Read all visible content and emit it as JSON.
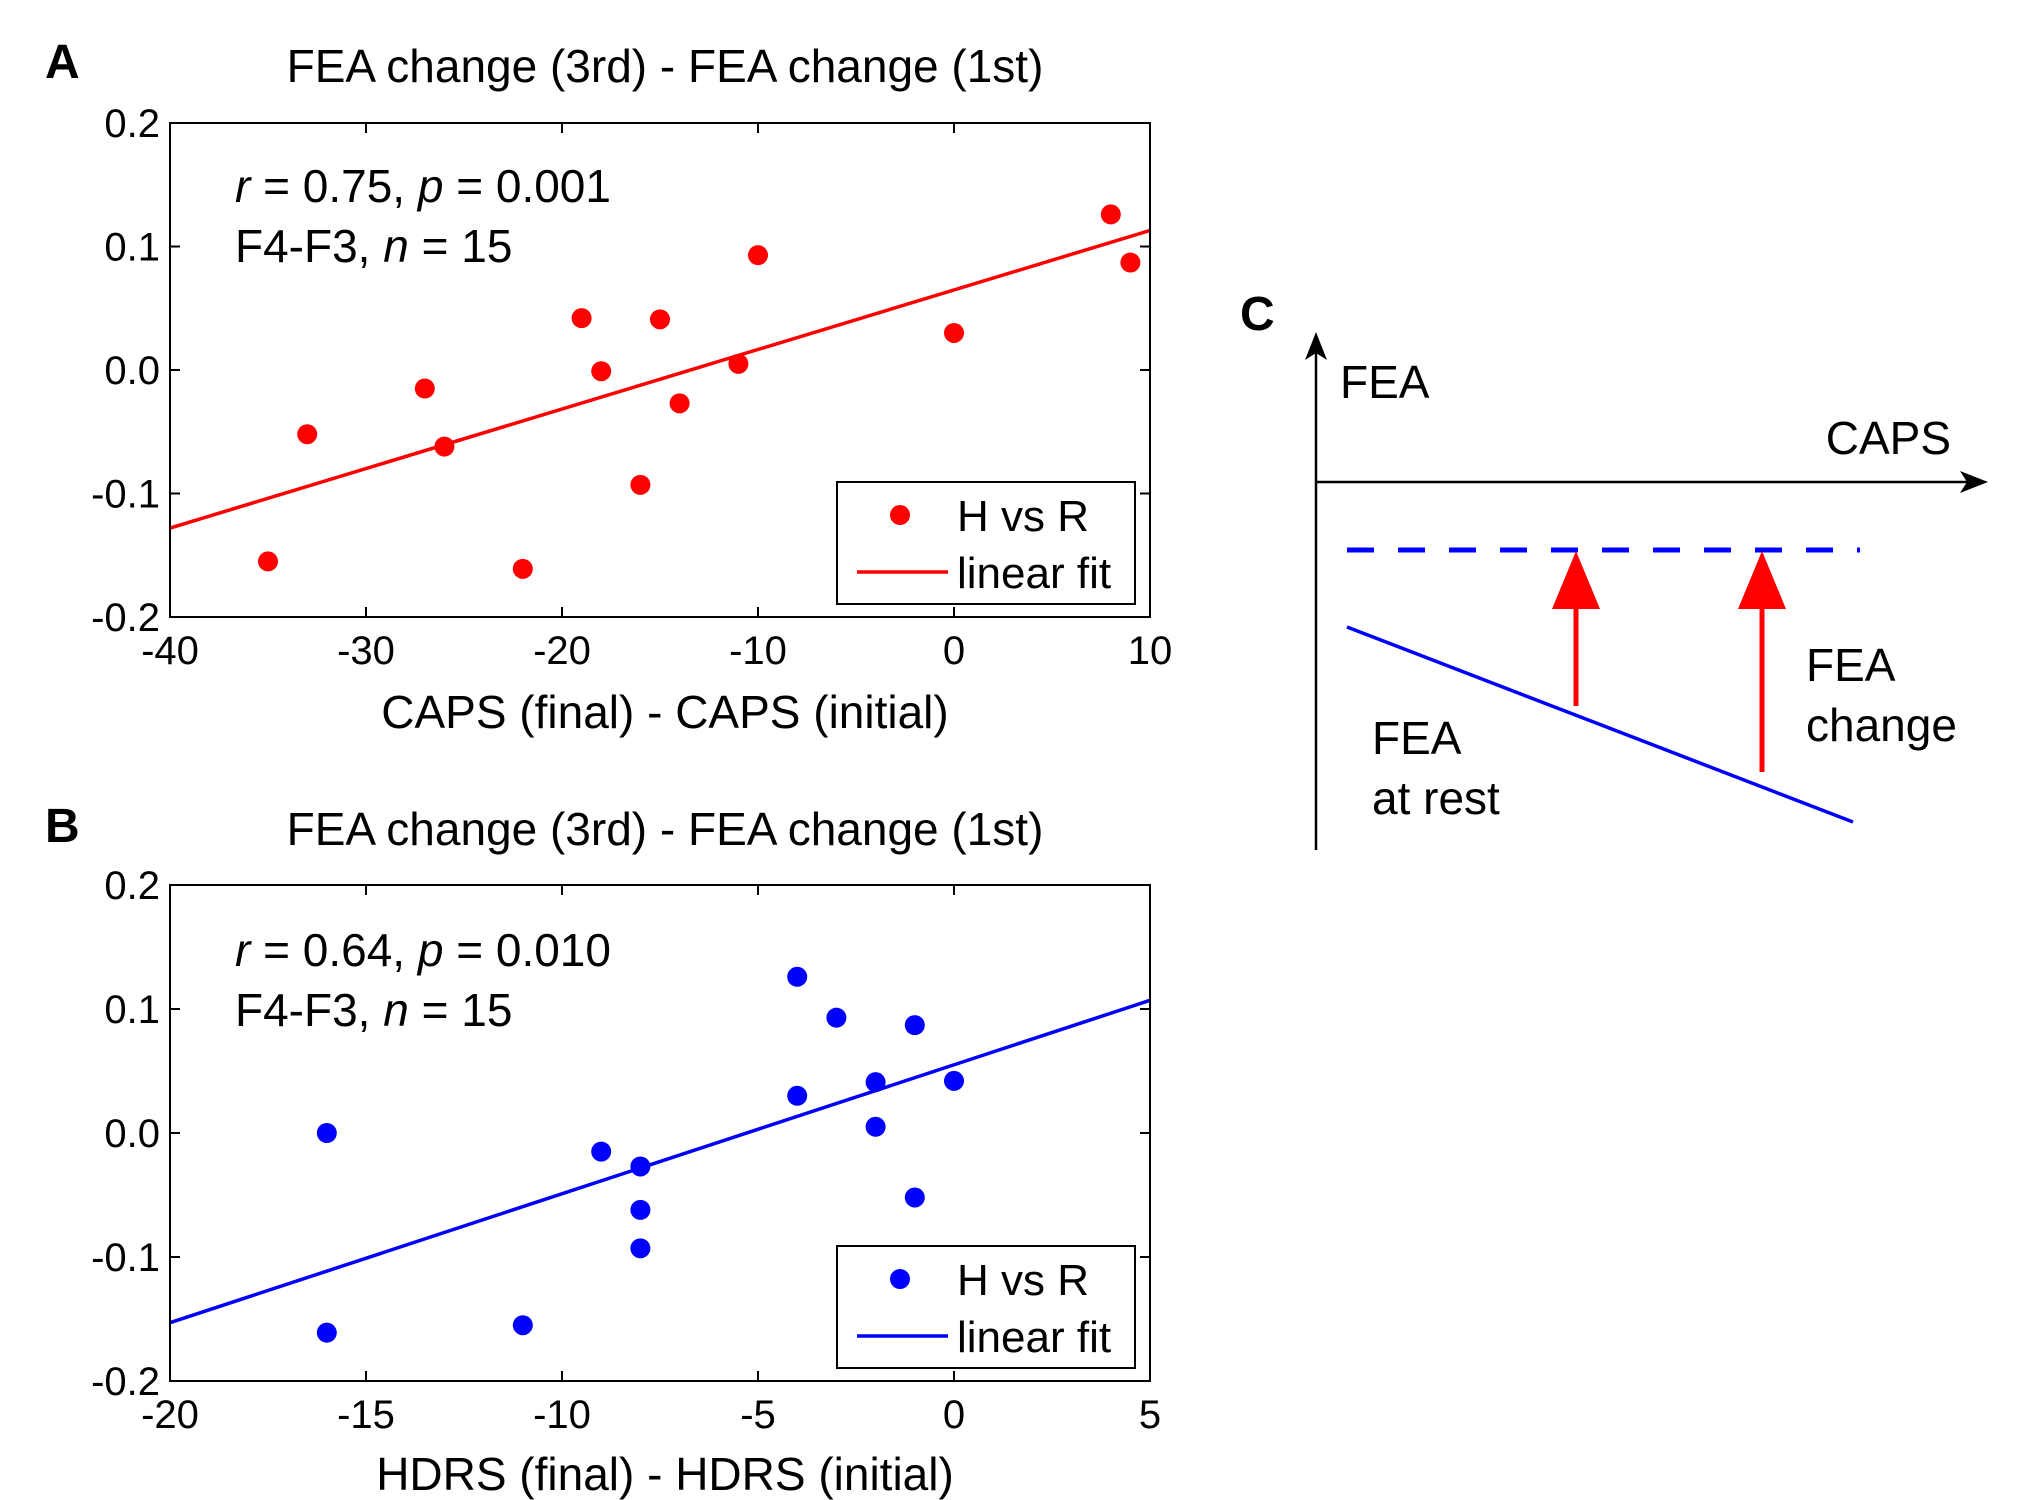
{
  "chart_data": [
    {
      "panel": "A",
      "type": "scatter",
      "title": "FEA change (3rd) - FEA change (1st)",
      "xlabel": "CAPS (final) - CAPS (initial)",
      "ylabel": "",
      "xlim": [
        -40,
        10
      ],
      "ylim": [
        -0.2,
        0.2
      ],
      "xticks": [
        -40,
        -30,
        -20,
        -10,
        0,
        10
      ],
      "xtick_labels": [
        "-40",
        "-30",
        "-20",
        "-10",
        "0",
        "10"
      ],
      "yticks": [
        -0.2,
        -0.1,
        0.0,
        0.1,
        0.2
      ],
      "ytick_labels": [
        "-0.2",
        "-0.1",
        "0.0",
        "0.1",
        "0.2"
      ],
      "color": "#ff0000",
      "stats": {
        "r_label": "r",
        "r_value": " = 0.75, ",
        "p_label": "p",
        "p_value": " = 0.001",
        "channel": "F4-F3, ",
        "n_label": "n",
        "n_value": " = 15"
      },
      "legend": {
        "points": "H vs R",
        "line": "linear fit",
        "position": "bottom-right"
      },
      "series": [
        {
          "name": "H vs R",
          "kind": "points",
          "x": [
            -35,
            -33,
            -27,
            -26,
            -22,
            -19,
            -18,
            -16,
            -15,
            -14,
            -11,
            -10,
            0,
            8,
            9
          ],
          "y": [
            -0.155,
            -0.052,
            -0.015,
            -0.062,
            -0.161,
            0.042,
            -0.001,
            -0.093,
            0.041,
            -0.027,
            0.005,
            0.093,
            0.03,
            0.126,
            0.087
          ]
        },
        {
          "name": "linear fit",
          "kind": "line",
          "x": [
            -40,
            10
          ],
          "y": [
            -0.128,
            0.113
          ]
        }
      ]
    },
    {
      "panel": "B",
      "type": "scatter",
      "title": "FEA change (3rd) - FEA change (1st)",
      "xlabel": "HDRS (final) - HDRS (initial)",
      "ylabel": "",
      "xlim": [
        -20,
        5
      ],
      "ylim": [
        -0.2,
        0.2
      ],
      "xticks": [
        -20,
        -15,
        -10,
        -5,
        0,
        5
      ],
      "xtick_labels": [
        "-20",
        "-15",
        "-10",
        "-5",
        "0",
        "5"
      ],
      "yticks": [
        -0.2,
        -0.1,
        0.0,
        0.1,
        0.2
      ],
      "ytick_labels": [
        "-0.2",
        "-0.1",
        "0.0",
        "0.1",
        "0.2"
      ],
      "color": "#0000ff",
      "stats": {
        "r_label": "r",
        "r_value": " = 0.64, ",
        "p_label": "p",
        "p_value": " = 0.010",
        "channel": "F4-F3, ",
        "n_label": "n",
        "n_value": " = 15"
      },
      "legend": {
        "points": "H vs R",
        "line": "linear fit",
        "position": "bottom-right"
      },
      "series": [
        {
          "name": "H vs R",
          "kind": "points",
          "x": [
            -16,
            -16,
            -11,
            -9,
            -8,
            -8,
            -8,
            -4,
            -4,
            -3,
            -2,
            -2,
            -1,
            -1,
            0
          ],
          "y": [
            0.0,
            -0.161,
            -0.155,
            -0.015,
            -0.027,
            -0.062,
            -0.093,
            0.126,
            0.03,
            0.093,
            0.041,
            0.005,
            0.087,
            -0.052,
            0.042
          ]
        },
        {
          "name": "linear fit",
          "kind": "line",
          "x": [
            -20,
            5
          ],
          "y": [
            -0.153,
            0.107
          ]
        }
      ]
    }
  ],
  "panel_labels": {
    "a": "A",
    "b": "B",
    "c": "C"
  },
  "diagram": {
    "y_axis_label": "FEA",
    "x_axis_label": "CAPS",
    "rest_label_line1": "FEA",
    "rest_label_line2": "at rest",
    "change_label_line1": "FEA",
    "change_label_line2": "change",
    "rest_line_color": "#0000ff",
    "arrow_color": "#ff0000"
  }
}
